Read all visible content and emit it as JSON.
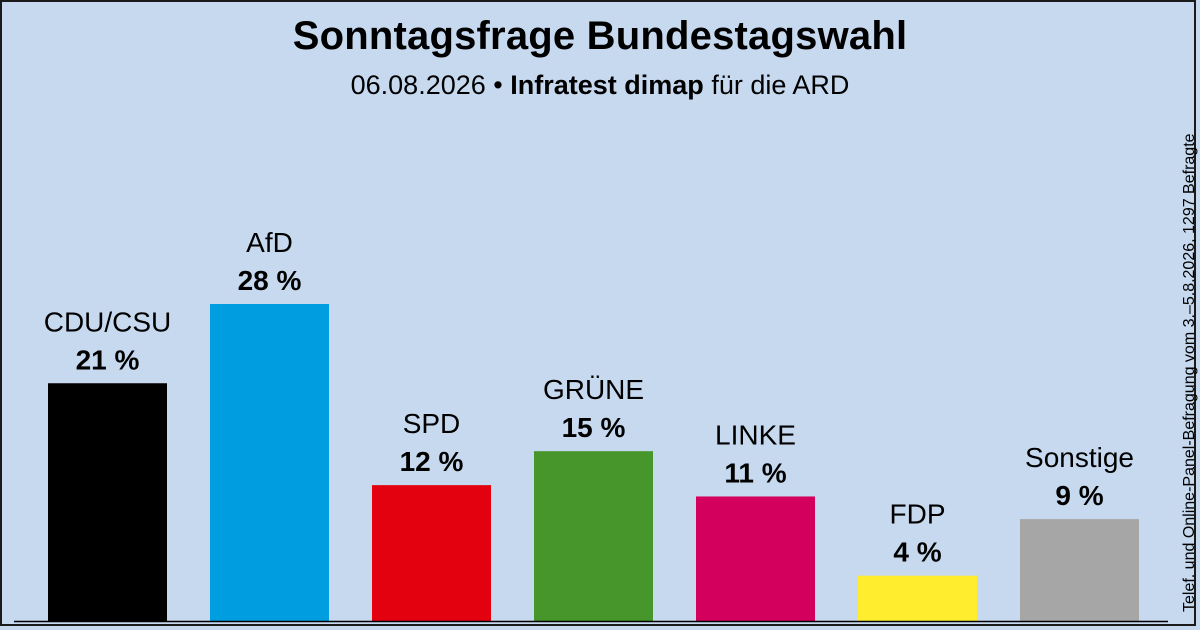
{
  "header": {
    "title": "Sonntagsfrage Bundestagswahl",
    "date": "06.08.2026",
    "bullet": "•",
    "institute": "Infratest dimap",
    "client": "für die ARD"
  },
  "side_note": "Telef. und Online-Panel-Befragung vom 3.–5.8.2026, 1297 Befragte",
  "chart_data": {
    "type": "bar",
    "title": "Sonntagsfrage Bundestagswahl",
    "categories": [
      "CDU/CSU",
      "AfD",
      "SPD",
      "GRÜNE",
      "LINKE",
      "FDP",
      "Sonstige"
    ],
    "values": [
      21,
      28,
      12,
      15,
      11,
      4,
      9
    ],
    "value_labels": [
      "21 %",
      "28 %",
      "12 %",
      "15 %",
      "11 %",
      "4 %",
      "9 %"
    ],
    "colors": [
      "#000000",
      "#009ee0",
      "#e3000f",
      "#46962b",
      "#d4005e",
      "#ffed2e",
      "#a6a6a6"
    ],
    "unit": "%",
    "ylim": [
      0,
      28
    ],
    "xlabel": "",
    "ylabel": "",
    "grid": false,
    "legend": "none"
  }
}
